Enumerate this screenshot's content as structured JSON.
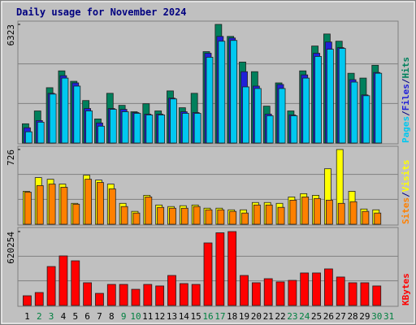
{
  "chart_data": [
    {
      "type": "bar",
      "title": "Daily usage for November 2024",
      "legend_separator": "/",
      "ylim": [
        0,
        6323
      ],
      "yticks": [
        6323
      ],
      "series": [
        {
          "name": "Hits",
          "color": "#00805c",
          "values": [
            1025,
            1709,
            2948,
            3845,
            3290,
            2264,
            1282,
            2649,
            2008,
            1666,
            2093,
            1709,
            2777,
            1880,
            2649,
            4870,
            6323,
            5682,
            4315,
            3802,
            1965,
            3204,
            1709,
            3845,
            5169,
            5810,
            5426,
            3717,
            3461,
            4144,
            null
          ]
        },
        {
          "name": "Files",
          "color": "#2020d8",
          "values": [
            812,
            1196,
            2649,
            3589,
            3204,
            1837,
            1068,
            1837,
            1794,
            1623,
            1538,
            1538,
            2392,
            1666,
            1623,
            4785,
            5682,
            5597,
            3802,
            3033,
            1538,
            3119,
            1495,
            3631,
            4785,
            5383,
            5084,
            3375,
            2563,
            3759,
            null
          ]
        },
        {
          "name": "Pages",
          "color": "#00c8f0",
          "values": [
            598,
            1111,
            2606,
            3460,
            3033,
            1709,
            897,
            1794,
            1666,
            1581,
            1495,
            1495,
            2350,
            1581,
            1581,
            4571,
            5425,
            5468,
            2990,
            2905,
            1452,
            2905,
            1452,
            3460,
            4614,
            4998,
            5041,
            3247,
            2520,
            3717,
            null
          ]
        }
      ]
    },
    {
      "type": "bar",
      "ylim": [
        0,
        726
      ],
      "yticks": [
        726
      ],
      "series": [
        {
          "name": "Visits",
          "color": "#ffff00",
          "values": [
            320,
            453,
            437,
            390,
            203,
            476,
            429,
            390,
            203,
            125,
            281,
            187,
            172,
            180,
            187,
            156,
            156,
            140,
            140,
            211,
            211,
            203,
            265,
            297,
            281,
            539,
            726,
            320,
            148,
            140,
            null
          ]
        },
        {
          "name": "Sites",
          "color": "#ff8000",
          "values": [
            312,
            375,
            390,
            359,
            195,
            437,
            406,
            343,
            172,
            109,
            265,
            164,
            156,
            156,
            172,
            140,
            140,
            125,
            109,
            187,
            187,
            164,
            234,
            265,
            250,
            234,
            203,
            219,
            125,
            109,
            null
          ]
        }
      ]
    },
    {
      "type": "bar",
      "ylim": [
        0,
        620254
      ],
      "yticks": [
        620254
      ],
      "categories": [
        "1",
        "2",
        "3",
        "4",
        "5",
        "6",
        "7",
        "8",
        "9",
        "10",
        "11",
        "12",
        "13",
        "14",
        "15",
        "16",
        "17",
        "18",
        "19",
        "20",
        "21",
        "22",
        "23",
        "24",
        "25",
        "26",
        "27",
        "28",
        "29",
        "30",
        "31"
      ],
      "category_colors": [
        "#000000",
        "#008040",
        "#008040",
        "#000000",
        "#000000",
        "#000000",
        "#000000",
        "#000000",
        "#008040",
        "#008040",
        "#000000",
        "#000000",
        "#000000",
        "#000000",
        "#000000",
        "#008040",
        "#008040",
        "#000000",
        "#000000",
        "#000000",
        "#000000",
        "#000000",
        "#008040",
        "#008040",
        "#000000",
        "#000000",
        "#000000",
        "#000000",
        "#000000",
        "#008040",
        "#008040"
      ],
      "series": [
        {
          "name": "KBytes",
          "color": "#ff0000",
          "values": [
            81790,
            109000,
            327000,
            416000,
            375000,
            191000,
            102000,
            177000,
            177000,
            136000,
            177000,
            164000,
            252000,
            184000,
            177000,
            525000,
            610000,
            620254,
            252000,
            191000,
            225000,
            198000,
            211000,
            273000,
            273000,
            307000,
            239000,
            191000,
            191000,
            164000,
            null
          ]
        }
      ]
    }
  ]
}
